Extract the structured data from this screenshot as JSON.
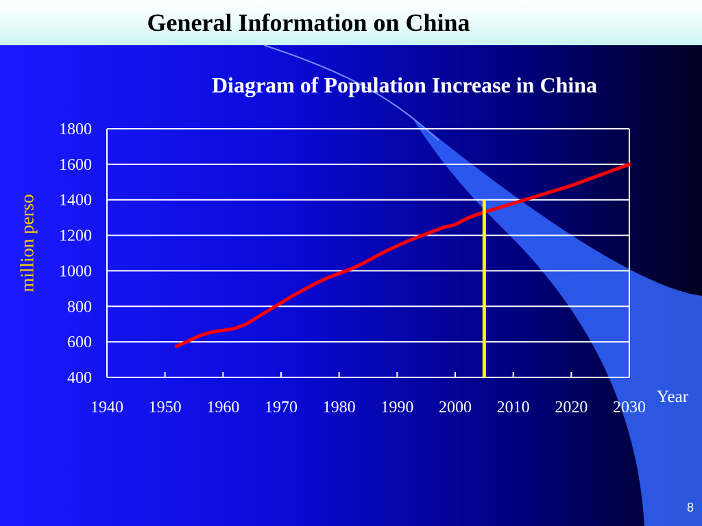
{
  "slide": {
    "title": "General Information on China",
    "page_number": "8"
  },
  "colors": {
    "background": "#0a0ad8",
    "series_line": "#ff0000",
    "marker_line": "#ffff00",
    "ylabel": "#ffcc00",
    "grid": "#ffffff",
    "swoosh": "#3366ff"
  },
  "chart_data": {
    "type": "line",
    "title": "Diagram of Population Increase in China",
    "xlabel": "Year",
    "ylabel": "million perso",
    "xlim": [
      1940,
      2030
    ],
    "ylim": [
      400,
      1800
    ],
    "x_ticks": [
      "1940",
      "1950",
      "1960",
      "1970",
      "1980",
      "1990",
      "2000",
      "2010",
      "2020",
      "2030"
    ],
    "y_ticks": [
      "400",
      "600",
      "800",
      "1000",
      "1200",
      "1400",
      "1600",
      "1800"
    ],
    "grid": "horizontal",
    "series": [
      {
        "x": [
          1952,
          1954,
          1956,
          1958,
          1960,
          1962,
          1964,
          1966,
          1968,
          1970,
          1972,
          1974,
          1976,
          1978,
          1980,
          1982,
          1984,
          1986,
          1988,
          1990,
          1992,
          1994,
          1996,
          1998,
          2000,
          2002,
          2004,
          2006,
          2008,
          2010,
          2015,
          2020,
          2025,
          2030
        ],
        "y": [
          575,
          605,
          635,
          655,
          665,
          675,
          700,
          740,
          780,
          820,
          860,
          895,
          930,
          960,
          985,
          1010,
          1040,
          1075,
          1110,
          1140,
          1170,
          1195,
          1220,
          1245,
          1260,
          1295,
          1320,
          1340,
          1360,
          1380,
          1430,
          1480,
          1540,
          1600
        ]
      }
    ],
    "reference_line": {
      "x": 2005,
      "y_from": 400,
      "y_to": 1400
    }
  }
}
